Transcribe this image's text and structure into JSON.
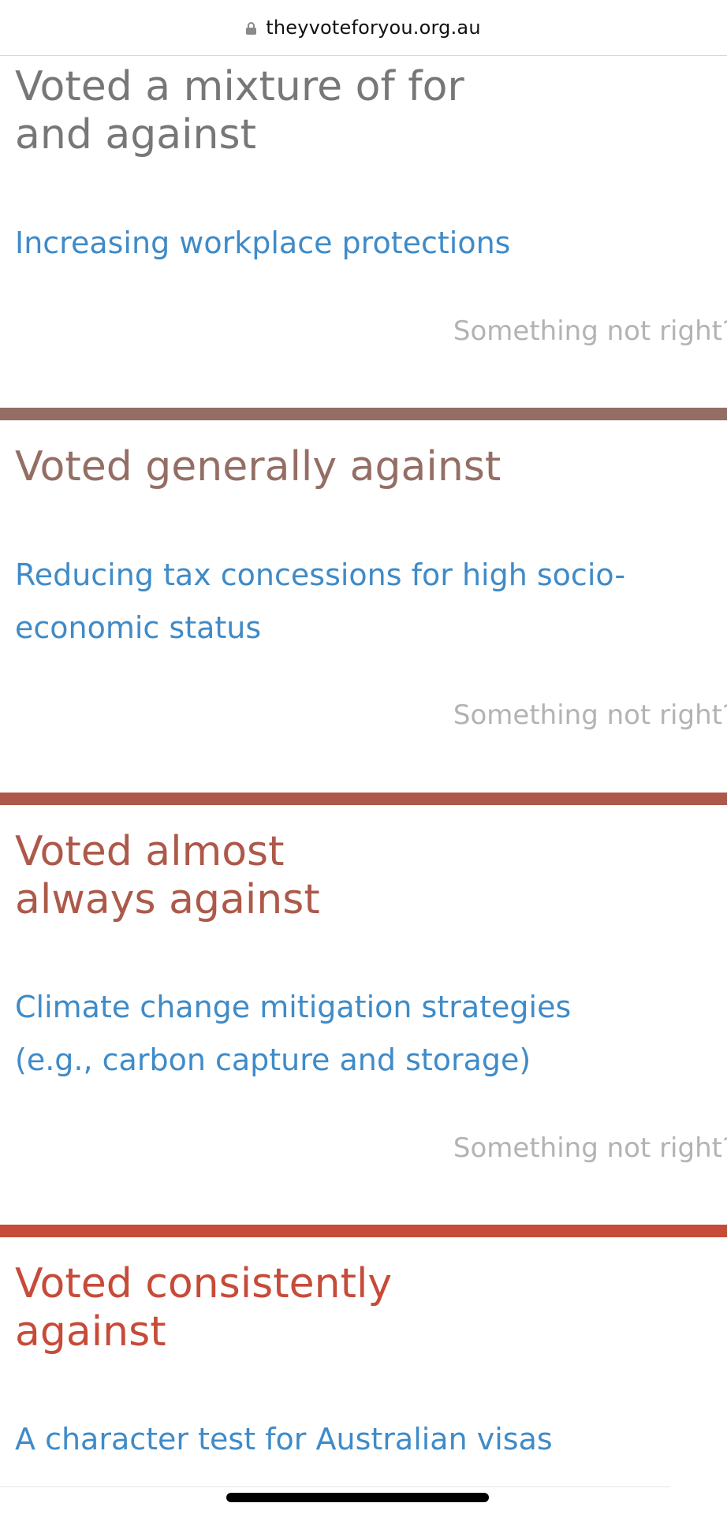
{
  "browser": {
    "url": "theyvoteforyou.org.au",
    "lock_icon": "lock-icon"
  },
  "sections": [
    {
      "heading_lines": [
        "Voted a mixture of for",
        "and against"
      ],
      "policy_lines": [
        "Increasing workplace protections"
      ],
      "feedback": "Something not right?",
      "color": "#777777"
    },
    {
      "bar_color": "#946e64",
      "heading_lines": [
        "Voted generally against"
      ],
      "policy_lines": [
        "Reducing tax concessions for high socio-",
        "economic status"
      ],
      "feedback": "Something not right?",
      "color": "#946e64"
    },
    {
      "bar_color": "#ad594a",
      "heading_lines": [
        "Voted almost",
        "always against"
      ],
      "policy_lines": [
        "Climate change mitigation strategies",
        "(e.g., carbon capture and storage)"
      ],
      "feedback": "Something not right?",
      "color": "#ad594a"
    },
    {
      "bar_color": "#c64b38",
      "heading_lines": [
        "Voted consistently",
        "against"
      ],
      "policy_lines": [
        "A character test for Australian visas"
      ],
      "color": "#c64b38"
    }
  ]
}
